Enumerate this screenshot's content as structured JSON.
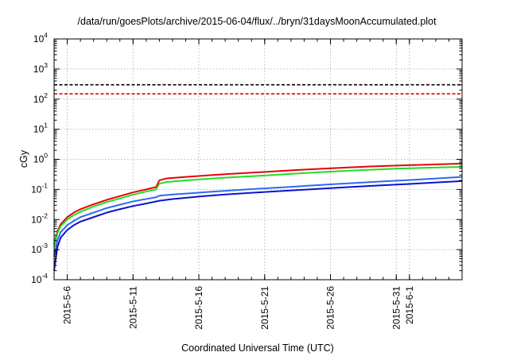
{
  "chart_data": {
    "type": "line",
    "title": "/data/run/goesPlots/archive/2015-06-04/flux/../bryn/31daysMoonAccumulated.plot",
    "xlabel": "Coordinated Universal Time (UTC)",
    "ylabel": "cGy",
    "yscale": "log",
    "ylim": [
      0.0001,
      10000
    ],
    "xlim": [
      "2015-05-05",
      "2015-06-05"
    ],
    "y_ticks": [
      {
        "base": "10",
        "exp": "-4",
        "value": 0.0001
      },
      {
        "base": "10",
        "exp": "-3",
        "value": 0.001
      },
      {
        "base": "10",
        "exp": "-2",
        "value": 0.01
      },
      {
        "base": "10",
        "exp": "-1",
        "value": 0.1
      },
      {
        "base": "10",
        "exp": "0",
        "value": 1
      },
      {
        "base": "10",
        "exp": "1",
        "value": 10
      },
      {
        "base": "10",
        "exp": "2",
        "value": 100
      },
      {
        "base": "10",
        "exp": "3",
        "value": 1000
      },
      {
        "base": "10",
        "exp": "4",
        "value": 10000
      }
    ],
    "x_ticks": [
      "2015-5-6",
      "2015-5-11",
      "2015-5-16",
      "2015-5-21",
      "2015-5-26",
      "2015-5-31",
      "2015-6-1"
    ],
    "grid": true,
    "thresholds": [
      {
        "y": 300,
        "color": "#000000",
        "style": "dashed"
      },
      {
        "y": 150,
        "color": "#e8000b",
        "style": "dashed"
      }
    ],
    "series": [
      {
        "color": "#e8000b",
        "points": [
          [
            "2015-05-05",
            0.0015
          ],
          [
            "2015-05-05 06:00",
            0.004
          ],
          [
            "2015-05-05 12:00",
            0.007
          ],
          [
            "2015-05-06",
            0.012
          ],
          [
            "2015-05-06 12:00",
            0.017
          ],
          [
            "2015-05-07",
            0.022
          ],
          [
            "2015-05-08",
            0.032
          ],
          [
            "2015-05-09",
            0.045
          ],
          [
            "2015-05-10",
            0.06
          ],
          [
            "2015-05-11",
            0.08
          ],
          [
            "2015-05-12",
            0.1
          ],
          [
            "2015-05-12 18:00",
            0.12
          ],
          [
            "2015-05-13",
            0.2
          ],
          [
            "2015-05-13 12:00",
            0.23
          ],
          [
            "2015-05-15",
            0.26
          ],
          [
            "2015-05-17",
            0.3
          ],
          [
            "2015-05-19",
            0.34
          ],
          [
            "2015-05-21",
            0.38
          ],
          [
            "2015-05-23",
            0.43
          ],
          [
            "2015-05-25",
            0.48
          ],
          [
            "2015-05-27",
            0.53
          ],
          [
            "2015-05-29",
            0.58
          ],
          [
            "2015-05-31",
            0.62
          ],
          [
            "2015-06-02",
            0.66
          ],
          [
            "2015-06-05",
            0.72
          ]
        ]
      },
      {
        "color": "#22dd22",
        "points": [
          [
            "2015-05-05",
            0.0012
          ],
          [
            "2015-05-05 06:00",
            0.0035
          ],
          [
            "2015-05-05 12:00",
            0.006
          ],
          [
            "2015-05-06",
            0.01
          ],
          [
            "2015-05-06 12:00",
            0.014
          ],
          [
            "2015-05-07",
            0.018
          ],
          [
            "2015-05-08",
            0.027
          ],
          [
            "2015-05-09",
            0.038
          ],
          [
            "2015-05-10",
            0.05
          ],
          [
            "2015-05-11",
            0.067
          ],
          [
            "2015-05-12",
            0.085
          ],
          [
            "2015-05-12 18:00",
            0.1
          ],
          [
            "2015-05-13",
            0.155
          ],
          [
            "2015-05-13 12:00",
            0.175
          ],
          [
            "2015-05-15",
            0.2
          ],
          [
            "2015-05-17",
            0.23
          ],
          [
            "2015-05-19",
            0.26
          ],
          [
            "2015-05-21",
            0.29
          ],
          [
            "2015-05-23",
            0.33
          ],
          [
            "2015-05-25",
            0.37
          ],
          [
            "2015-05-27",
            0.41
          ],
          [
            "2015-05-29",
            0.45
          ],
          [
            "2015-05-31",
            0.49
          ],
          [
            "2015-06-02",
            0.52
          ],
          [
            "2015-06-05",
            0.56
          ]
        ]
      },
      {
        "color": "#2a6cf0",
        "points": [
          [
            "2015-05-05",
            0.0006
          ],
          [
            "2015-05-05 06:00",
            0.002
          ],
          [
            "2015-05-05 12:00",
            0.0038
          ],
          [
            "2015-05-06",
            0.0065
          ],
          [
            "2015-05-06 12:00",
            0.009
          ],
          [
            "2015-05-07",
            0.012
          ],
          [
            "2015-05-08",
            0.017
          ],
          [
            "2015-05-09",
            0.024
          ],
          [
            "2015-05-10",
            0.031
          ],
          [
            "2015-05-11",
            0.04
          ],
          [
            "2015-05-12",
            0.048
          ],
          [
            "2015-05-12 18:00",
            0.055
          ],
          [
            "2015-05-13",
            0.062
          ],
          [
            "2015-05-14",
            0.068
          ],
          [
            "2015-05-16",
            0.078
          ],
          [
            "2015-05-18",
            0.09
          ],
          [
            "2015-05-20",
            0.102
          ],
          [
            "2015-05-22",
            0.115
          ],
          [
            "2015-05-24",
            0.13
          ],
          [
            "2015-05-26",
            0.147
          ],
          [
            "2015-05-28",
            0.165
          ],
          [
            "2015-05-30",
            0.185
          ],
          [
            "2015-06-01",
            0.205
          ],
          [
            "2015-06-03",
            0.23
          ],
          [
            "2015-06-05",
            0.26
          ]
        ]
      },
      {
        "color": "#1010d0",
        "points": [
          [
            "2015-05-05",
            0.0002
          ],
          [
            "2015-05-05 06:00",
            0.0012
          ],
          [
            "2015-05-05 12:00",
            0.0025
          ],
          [
            "2015-05-06",
            0.0045
          ],
          [
            "2015-05-06 12:00",
            0.0065
          ],
          [
            "2015-05-07",
            0.0085
          ],
          [
            "2015-05-08",
            0.012
          ],
          [
            "2015-05-09",
            0.017
          ],
          [
            "2015-05-10",
            0.022
          ],
          [
            "2015-05-11",
            0.028
          ],
          [
            "2015-05-12",
            0.034
          ],
          [
            "2015-05-13",
            0.042
          ],
          [
            "2015-05-14",
            0.048
          ],
          [
            "2015-05-16",
            0.058
          ],
          [
            "2015-05-18",
            0.068
          ],
          [
            "2015-05-20",
            0.077
          ],
          [
            "2015-05-22",
            0.087
          ],
          [
            "2015-05-24",
            0.098
          ],
          [
            "2015-05-26",
            0.11
          ],
          [
            "2015-05-28",
            0.124
          ],
          [
            "2015-05-30",
            0.138
          ],
          [
            "2015-06-01",
            0.152
          ],
          [
            "2015-06-03",
            0.17
          ],
          [
            "2015-06-05",
            0.19
          ]
        ]
      }
    ]
  }
}
